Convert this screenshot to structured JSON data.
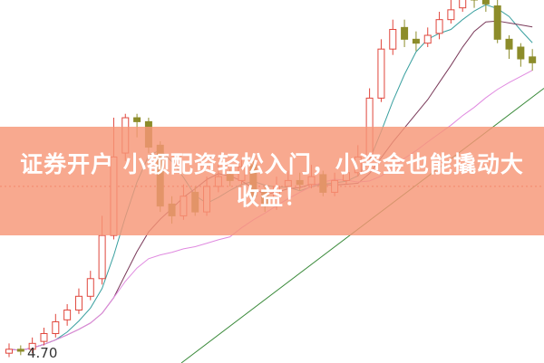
{
  "headline": "证券开户 小额配资轻松入门，小资金也能撬动大收益！",
  "chart_data": {
    "type": "candlestick",
    "price_label": "4.70",
    "ylim": [
      4.65,
      6.5
    ],
    "grid": false,
    "colors": {
      "up": "#e0463c",
      "down": "#8c8c2a",
      "ma5": "#3aa0a0",
      "ma10": "#7a3a5a",
      "ma20": "#e08ae0",
      "ma60": "#3a8a3a"
    },
    "open": [
      4.7,
      4.72,
      4.72,
      4.76,
      4.8,
      4.87,
      4.92,
      4.99,
      5.08,
      5.3,
      5.72,
      5.9,
      5.88,
      5.76,
      5.46,
      5.4,
      5.52,
      5.42,
      5.55,
      5.61,
      5.58,
      5.66,
      5.52,
      5.45,
      5.55,
      5.58,
      5.56,
      5.61,
      5.52,
      5.58,
      5.62,
      5.7,
      6.0,
      6.25,
      6.36,
      6.3,
      6.28,
      6.33,
      6.4,
      6.46,
      6.55,
      6.5,
      6.47,
      6.3,
      6.26,
      6.21
    ],
    "close": [
      4.72,
      4.71,
      4.75,
      4.8,
      4.86,
      4.92,
      4.99,
      5.08,
      5.3,
      5.7,
      5.9,
      5.88,
      5.75,
      5.45,
      5.4,
      5.5,
      5.42,
      5.55,
      5.6,
      5.58,
      5.65,
      5.5,
      5.45,
      5.55,
      5.58,
      5.56,
      5.6,
      5.52,
      5.58,
      5.62,
      5.7,
      6.0,
      6.25,
      6.35,
      6.3,
      6.28,
      6.32,
      6.4,
      6.45,
      6.55,
      6.5,
      6.48,
      6.3,
      6.25,
      6.2,
      6.18
    ],
    "high": [
      4.75,
      4.74,
      4.78,
      4.83,
      4.9,
      4.95,
      5.03,
      5.12,
      5.4,
      5.9,
      5.92,
      5.92,
      5.9,
      5.78,
      5.5,
      5.56,
      5.55,
      5.6,
      5.66,
      5.64,
      5.7,
      5.68,
      5.55,
      5.6,
      5.63,
      5.62,
      5.66,
      5.63,
      5.62,
      5.66,
      5.76,
      6.05,
      6.3,
      6.4,
      6.4,
      6.34,
      6.36,
      6.44,
      6.5,
      6.6,
      6.58,
      6.54,
      6.5,
      6.32,
      6.28,
      6.25
    ],
    "low": [
      4.68,
      4.69,
      4.7,
      4.74,
      4.78,
      4.84,
      4.9,
      4.97,
      5.05,
      5.28,
      5.68,
      5.8,
      5.72,
      5.42,
      5.36,
      5.38,
      5.4,
      5.4,
      5.52,
      5.55,
      5.56,
      5.48,
      5.42,
      5.43,
      5.52,
      5.53,
      5.54,
      5.5,
      5.5,
      5.56,
      5.6,
      5.68,
      5.98,
      6.22,
      6.26,
      6.24,
      6.26,
      6.3,
      6.38,
      6.44,
      6.46,
      6.44,
      6.28,
      6.2,
      6.16,
      6.14
    ]
  }
}
